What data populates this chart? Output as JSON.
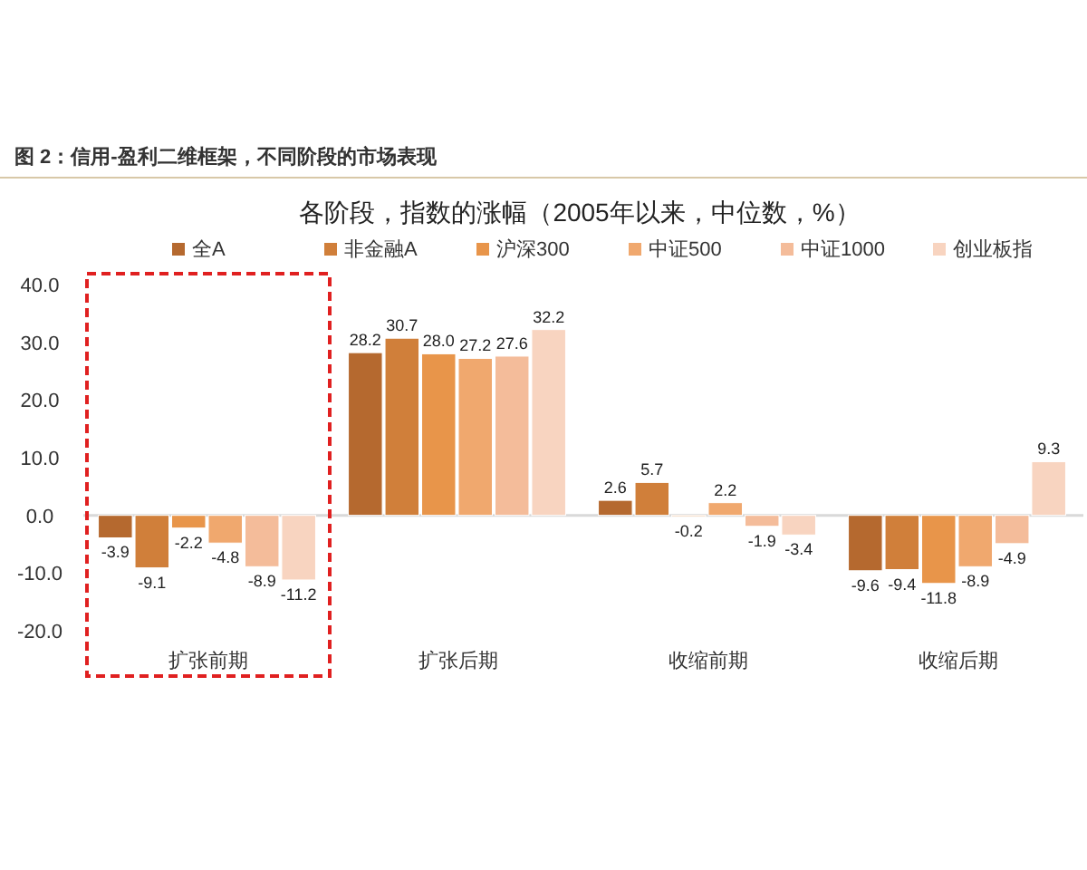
{
  "chart_data": {
    "type": "bar",
    "title": "各阶段，指数的涨幅（2005年以来，中位数，%）",
    "annotations": [
      "图 2：信用-盈利二维框架，不同阶段的市场表现"
    ],
    "categories": [
      "扩张前期",
      "扩张后期",
      "收缩前期",
      "收缩后期"
    ],
    "series": [
      {
        "name": "全A",
        "color": "#b5692f",
        "values": [
          -3.9,
          28.2,
          2.6,
          -9.6
        ],
        "value_labels": [
          "-3.9",
          "28.2",
          "2.6",
          "-9.6"
        ]
      },
      {
        "name": "非金融A",
        "color": "#d07f3a",
        "values": [
          -9.1,
          30.7,
          5.7,
          -9.4
        ],
        "value_labels": [
          "-9.1",
          "30.7",
          "5.7",
          "-9.4"
        ]
      },
      {
        "name": "沪深300",
        "color": "#e8954a",
        "values": [
          -2.2,
          28.0,
          -0.2,
          -11.8
        ],
        "value_labels": [
          "-2.2",
          "28.0",
          "-0.2",
          "-11.8"
        ]
      },
      {
        "name": "中证500",
        "color": "#f0a86e",
        "values": [
          -4.8,
          27.2,
          2.2,
          -8.9
        ],
        "value_labels": [
          "-4.8",
          "27.2",
          "2.2",
          "-8.9"
        ]
      },
      {
        "name": "中证1000",
        "color": "#f4bc9a",
        "values": [
          -8.9,
          27.6,
          -1.9,
          -4.9
        ],
        "value_labels": [
          "-8.9",
          "27.6",
          "-1.9",
          "-4.9"
        ]
      },
      {
        "name": "创业板指",
        "color": "#f8d4c0",
        "values": [
          -11.2,
          32.2,
          -3.4,
          9.3
        ],
        "value_labels": [
          "-11.2",
          "32.2",
          "-3.4",
          "9.3"
        ]
      }
    ],
    "ylim": [
      -20,
      40
    ],
    "yticks": [
      {
        "value": -20,
        "label": "-20.0"
      },
      {
        "value": -10,
        "label": "-10.0"
      },
      {
        "value": 0,
        "label": "0.0"
      },
      {
        "value": 10,
        "label": "10.0"
      },
      {
        "value": 20,
        "label": "20.0"
      },
      {
        "value": 30,
        "label": "30.0"
      },
      {
        "value": 40,
        "label": "40.0"
      }
    ],
    "ref_lines": [
      {
        "axis": "y",
        "value": 0,
        "color": "#d9d9d9"
      }
    ],
    "legend": "top"
  }
}
